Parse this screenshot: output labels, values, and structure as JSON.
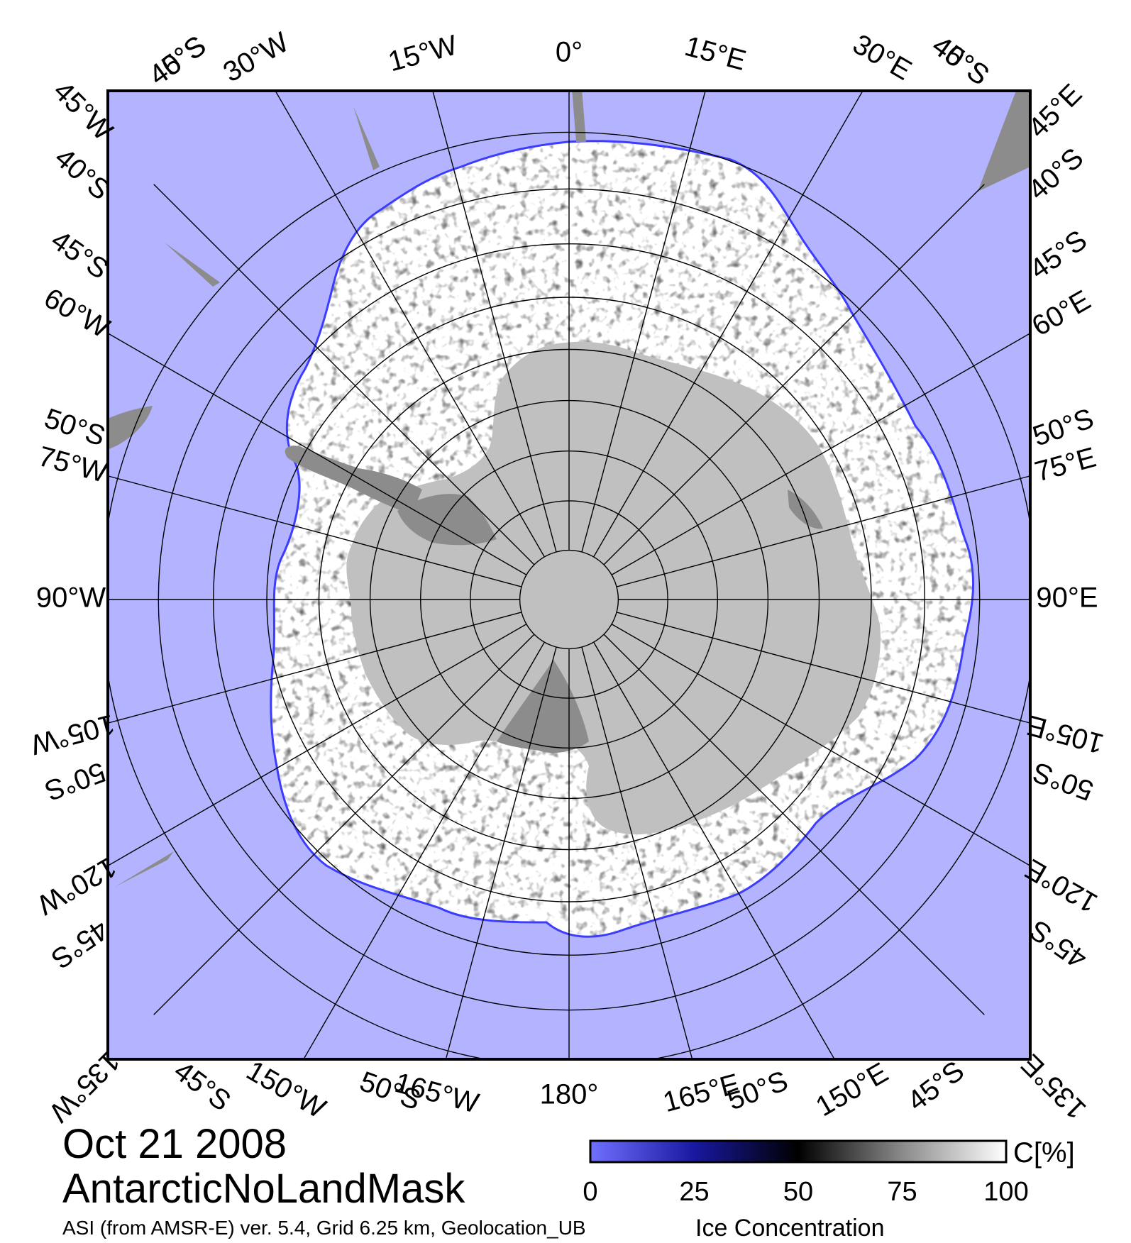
{
  "map": {
    "date": "Oct 21 2008",
    "product": "AntarcticNoLandMask",
    "source_line": "ASI (from AMSR-E) ver. 5.4,  Grid 6.25 km, Geolocation_UB",
    "variable": "Ice Concentration",
    "colors": {
      "ocean": "#b3b3ff",
      "land": "#c0c0c0",
      "ice_shelf": "#8c8c8c",
      "ice_high": "#ffffff",
      "ice_low": "#000000",
      "open_low": "#3c3cff"
    },
    "colorbar": {
      "unit": "C[%]",
      "ticks": [
        "0",
        "25",
        "50",
        "75",
        "100"
      ]
    },
    "graticule": {
      "meridian_labels": [
        {
          "text": "0°",
          "lon": 0
        },
        {
          "text": "15°E",
          "lon": 15
        },
        {
          "text": "30°E",
          "lon": 30
        },
        {
          "text": "45°E",
          "lon": 45
        },
        {
          "text": "60°E",
          "lon": 60
        },
        {
          "text": "75°E",
          "lon": 75
        },
        {
          "text": "90°E",
          "lon": 90
        },
        {
          "text": "105°E",
          "lon": 105
        },
        {
          "text": "120°E",
          "lon": 120
        },
        {
          "text": "135°E",
          "lon": 135
        },
        {
          "text": "150°E",
          "lon": 150
        },
        {
          "text": "165°E",
          "lon": 165
        },
        {
          "text": "180°",
          "lon": 180
        },
        {
          "text": "165°W",
          "lon": -165
        },
        {
          "text": "150°W",
          "lon": -150
        },
        {
          "text": "135°W",
          "lon": -135
        },
        {
          "text": "120°W",
          "lon": -120
        },
        {
          "text": "105°W",
          "lon": -105
        },
        {
          "text": "90°W",
          "lon": -90
        },
        {
          "text": "75°W",
          "lon": -75
        },
        {
          "text": "60°W",
          "lon": -60
        },
        {
          "text": "45°W",
          "lon": -45
        },
        {
          "text": "30°W",
          "lon": -30
        },
        {
          "text": "15°W",
          "lon": -15
        }
      ],
      "latitude_labels": [
        {
          "text": "40°S",
          "lat": -40,
          "lon": -36
        },
        {
          "text": "45°S",
          "lat": -45,
          "lon": -36
        },
        {
          "text": "40°S",
          "lat": -40,
          "lon": -49
        },
        {
          "text": "45°S",
          "lat": -45,
          "lon": -55
        },
        {
          "text": "50°S",
          "lat": -50,
          "lon": -71
        },
        {
          "text": "50°S",
          "lat": -50,
          "lon": -110
        },
        {
          "text": "45°S",
          "lat": -45,
          "lon": -125
        },
        {
          "text": "45°S",
          "lat": -45,
          "lon": -143
        },
        {
          "text": "50°S",
          "lat": -50,
          "lon": -160
        },
        {
          "text": "50°S",
          "lat": -50,
          "lon": 159
        },
        {
          "text": "45°S",
          "lat": -45,
          "lon": 143
        },
        {
          "text": "45°S",
          "lat": -45,
          "lon": 125
        },
        {
          "text": "50°S",
          "lat": -50,
          "lon": 110
        },
        {
          "text": "50°S",
          "lat": -50,
          "lon": 71
        },
        {
          "text": "45°S",
          "lat": -45,
          "lon": 55
        },
        {
          "text": "40°S",
          "lat": -40,
          "lon": 49
        },
        {
          "text": "45°S",
          "lat": -45,
          "lon": 36
        },
        {
          "text": "40°S",
          "lat": -40,
          "lon": 36
        }
      ],
      "circles_lat": [
        -45,
        -50,
        -55,
        -60,
        -65,
        -70,
        -75,
        -80,
        -85
      ]
    }
  }
}
